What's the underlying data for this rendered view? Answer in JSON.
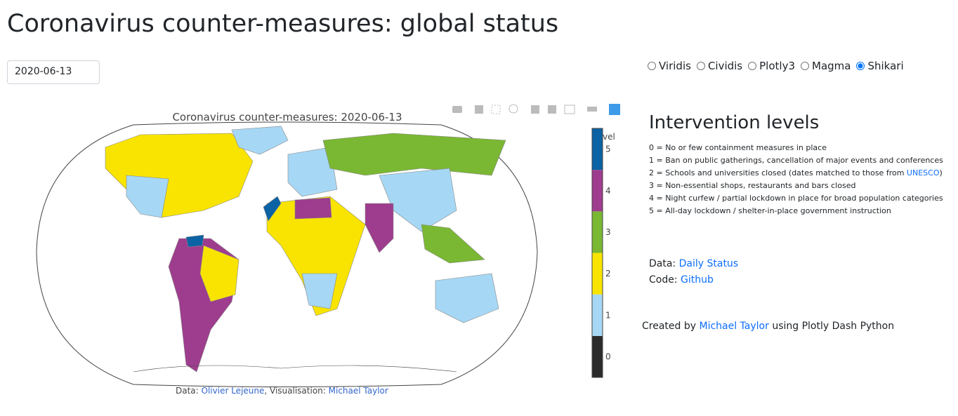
{
  "header": {
    "title": "Coronavirus counter-measures: global status"
  },
  "date_input": "2020-06-13",
  "colorscales": [
    {
      "label": "Viridis",
      "selected": false
    },
    {
      "label": "Cividis",
      "selected": false
    },
    {
      "label": "Plotly3",
      "selected": false
    },
    {
      "label": "Magma",
      "selected": false
    },
    {
      "label": "Shikari",
      "selected": true
    }
  ],
  "map": {
    "title": "Coronavirus counter-measures: 2020-06-13",
    "colorbar": {
      "title": "Level",
      "ticks": [
        0,
        1,
        2,
        3,
        4,
        5
      ],
      "colors": [
        "#2b2b2b",
        "#a6d8f5",
        "#f8e400",
        "#7ab733",
        "#9e3d8e",
        "#0b62a4"
      ]
    },
    "credit": {
      "data_label": "Data:",
      "data_link": "Olivier Lejeune",
      "vis_label": ", Visualisation:",
      "vis_link": "Michael Taylor"
    }
  },
  "levels": {
    "title": "Intervention levels",
    "items": [
      {
        "text": "0 = No or few containment measures in place"
      },
      {
        "text": "1 = Ban on public gatherings, cancellation of major events and conferences"
      },
      {
        "text": "2 = Schools and universities closed (dates matched to those from",
        "link": "UNESCO",
        "after": ")"
      },
      {
        "text": "3 = Non-essential shops, restaurants and bars closed"
      },
      {
        "text": "4 = Night curfew / partial lockdown in place for broad population categories"
      },
      {
        "text": "5 = All-day lockdown / shelter-in-place government instruction"
      }
    ]
  },
  "sources": {
    "data_label": "Data:",
    "data_link": "Daily Status",
    "code_label": "Code:",
    "code_link": "Github"
  },
  "footer": {
    "prefix": "Created by",
    "link": "Michael Taylor",
    "suffix": "using Plotly Dash Python"
  }
}
